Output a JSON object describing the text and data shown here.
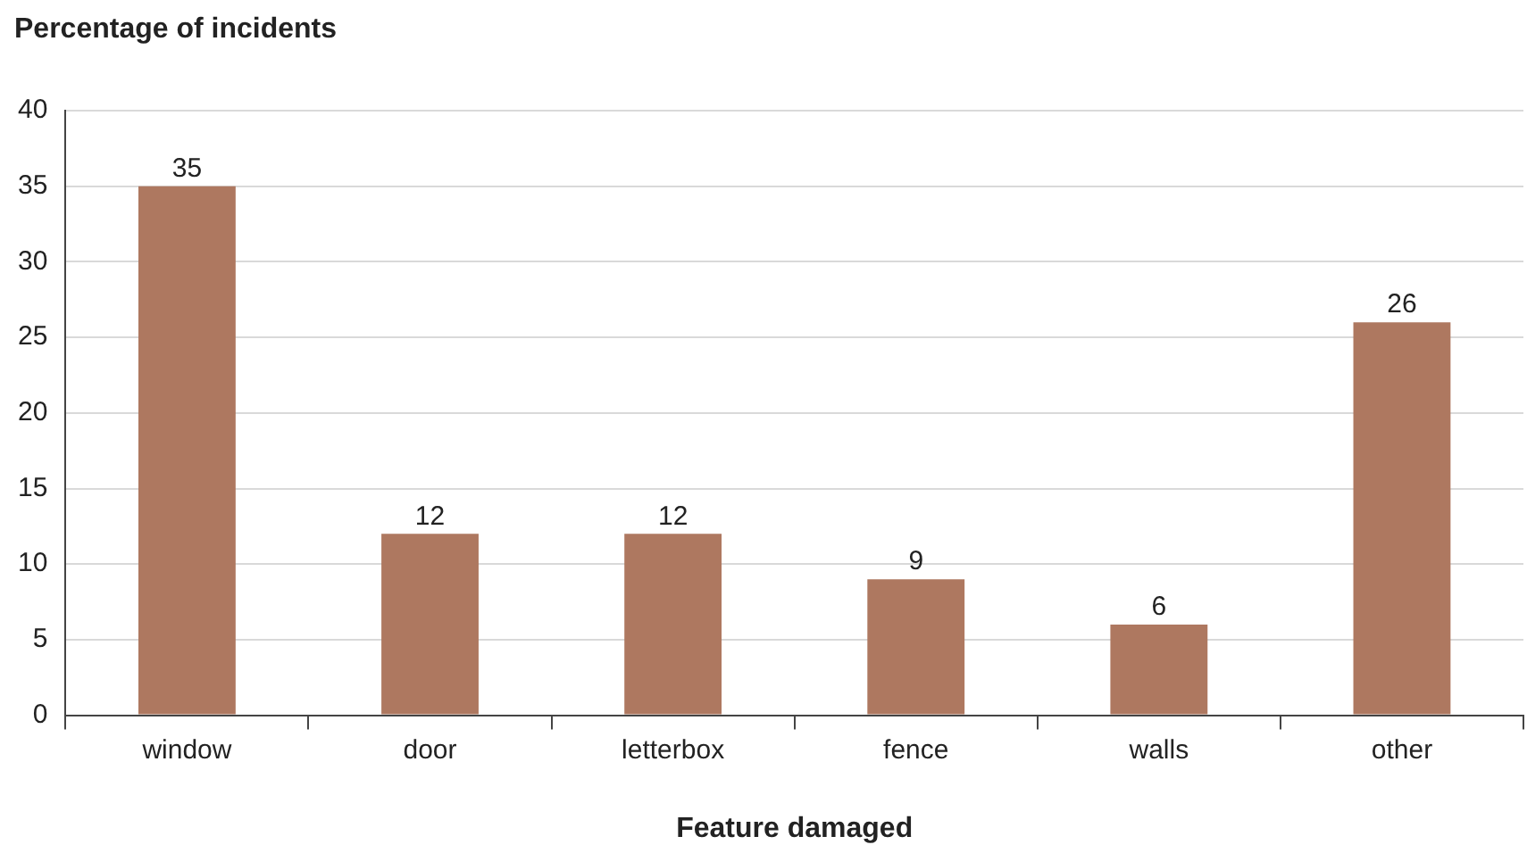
{
  "chart_data": {
    "type": "bar",
    "ylabel": "Percentage of incidents",
    "xlabel": "Feature damaged",
    "categories": [
      "window",
      "door",
      "letterbox",
      "fence",
      "walls",
      "other"
    ],
    "values": [
      35,
      12,
      12,
      9,
      6,
      26
    ],
    "color": "#ae7860",
    "ylim": [
      0,
      40
    ],
    "yticks": [
      0,
      5,
      10,
      15,
      20,
      25,
      30,
      35,
      40
    ],
    "grid": "y",
    "data_labels": true
  }
}
